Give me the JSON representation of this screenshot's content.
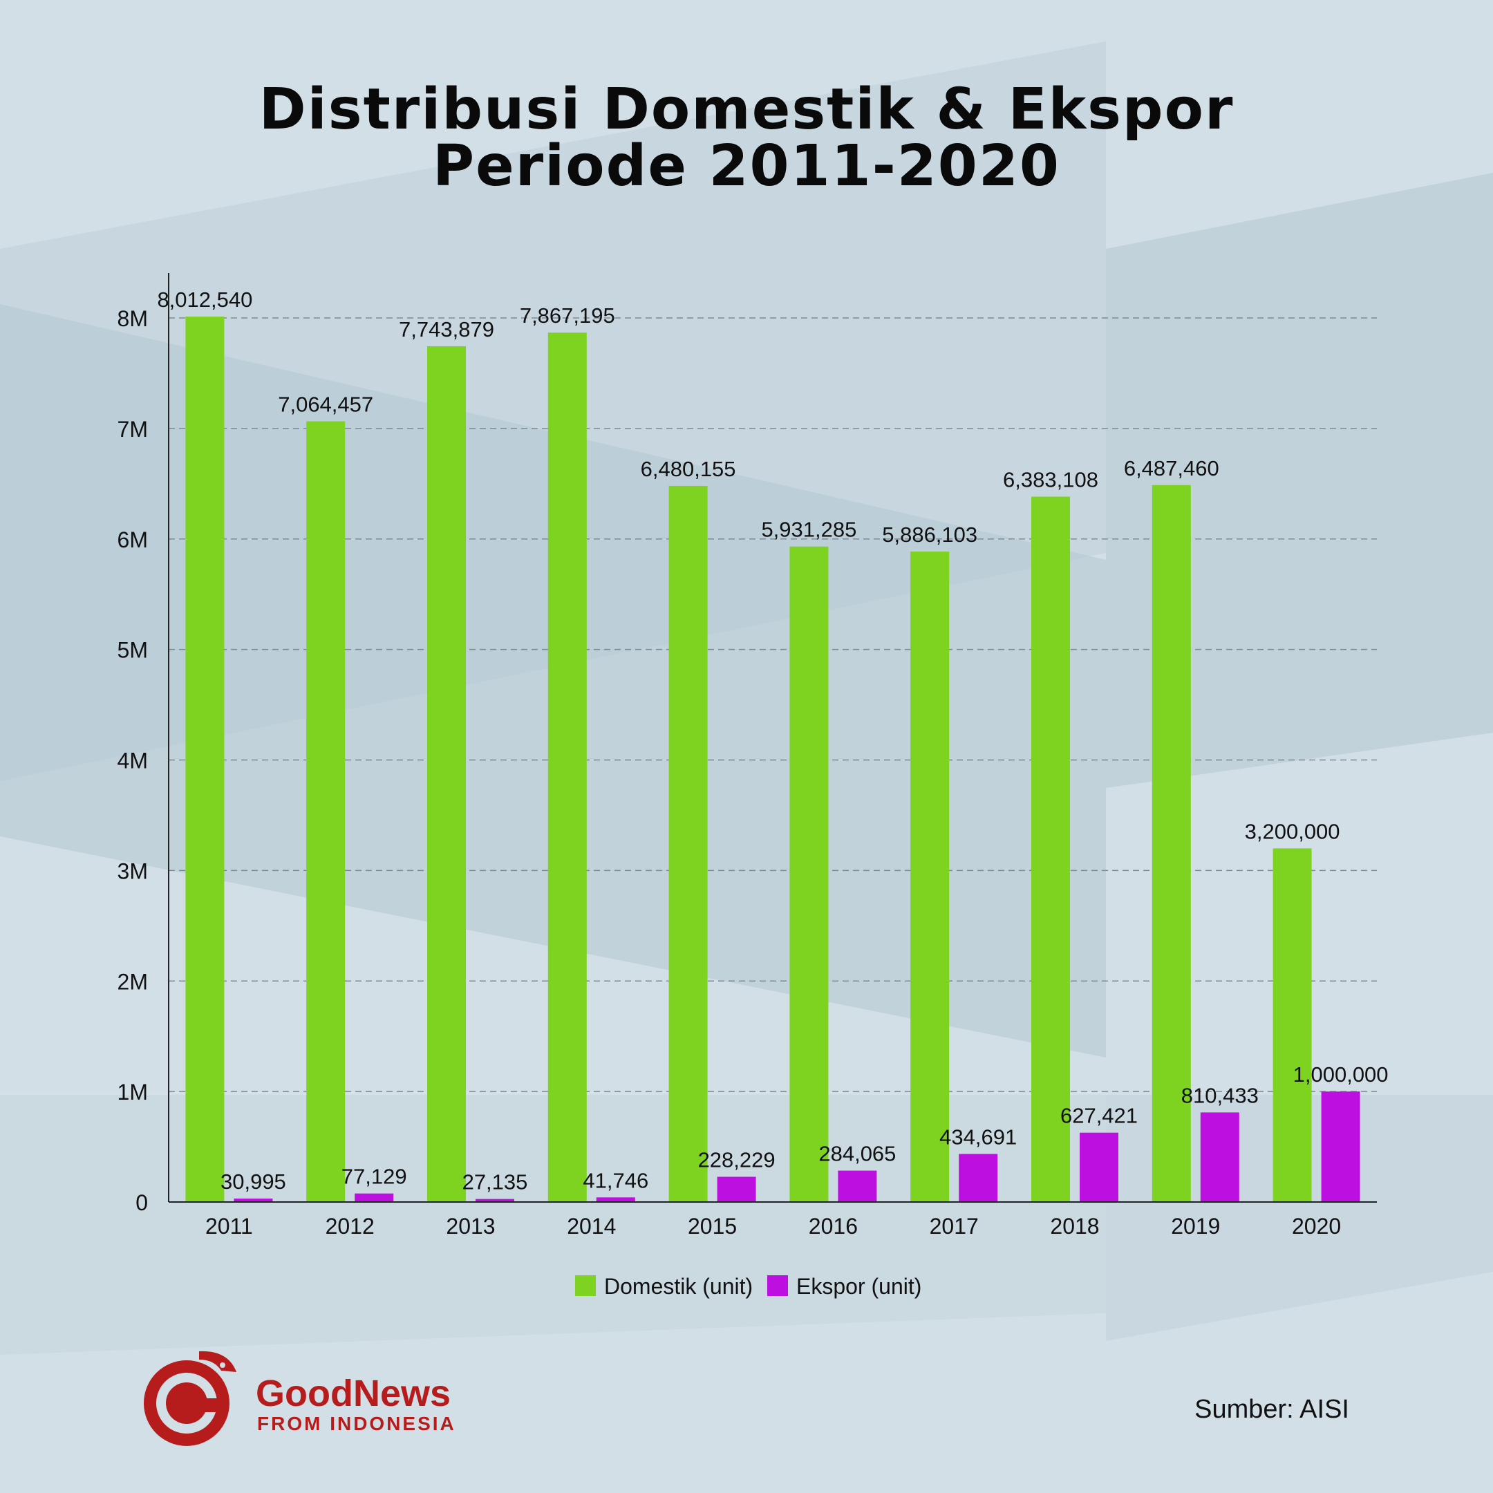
{
  "title_line1": "Distribusi Domestik & Ekspor",
  "title_line2": "Periode 2011-2020",
  "colors": {
    "domestik": "#7ed321",
    "ekspor": "#bd10e0",
    "brand_red": "#b71c1c"
  },
  "chart_data": {
    "type": "bar",
    "title": "Distribusi Domestik & Ekspor Periode 2011-2020",
    "categories": [
      "2011",
      "2012",
      "2013",
      "2014",
      "2015",
      "2016",
      "2017",
      "2018",
      "2019",
      "2020"
    ],
    "series": [
      {
        "name": "Domestik (unit)",
        "values": [
          8012540,
          7064457,
          7743879,
          7867195,
          6480155,
          5931285,
          5886103,
          6383108,
          6487460,
          3200000
        ],
        "labels": [
          "8,012,540",
          "7,064,457",
          "7,743,879",
          "7,867,195",
          "6,480,155",
          "5,931,285",
          "5,886,103",
          "6,383,108",
          "6,487,460",
          "3,200,000"
        ]
      },
      {
        "name": "Ekspor (unit)",
        "values": [
          30995,
          77129,
          27135,
          41746,
          228229,
          284065,
          434691,
          627421,
          810433,
          1000000
        ],
        "labels": [
          "30,995",
          "77,129",
          "27,135",
          "41,746",
          "228,229",
          "284,065",
          "434,691",
          "627,421",
          "810,433",
          "1,000,000"
        ]
      }
    ],
    "yticks": [
      0,
      1000000,
      2000000,
      3000000,
      4000000,
      5000000,
      6000000,
      7000000,
      8000000
    ],
    "ytick_labels": [
      "0",
      "1M",
      "2M",
      "3M",
      "4M",
      "5M",
      "6M",
      "7M",
      "8M"
    ],
    "ylim": [
      0,
      8400000
    ],
    "grid": true,
    "legend": "bottom-center",
    "xlabel": "",
    "ylabel": ""
  },
  "brand": {
    "name": "GoodNews",
    "sub": "FROM INDONESIA"
  },
  "source": "Sumber: AISI"
}
